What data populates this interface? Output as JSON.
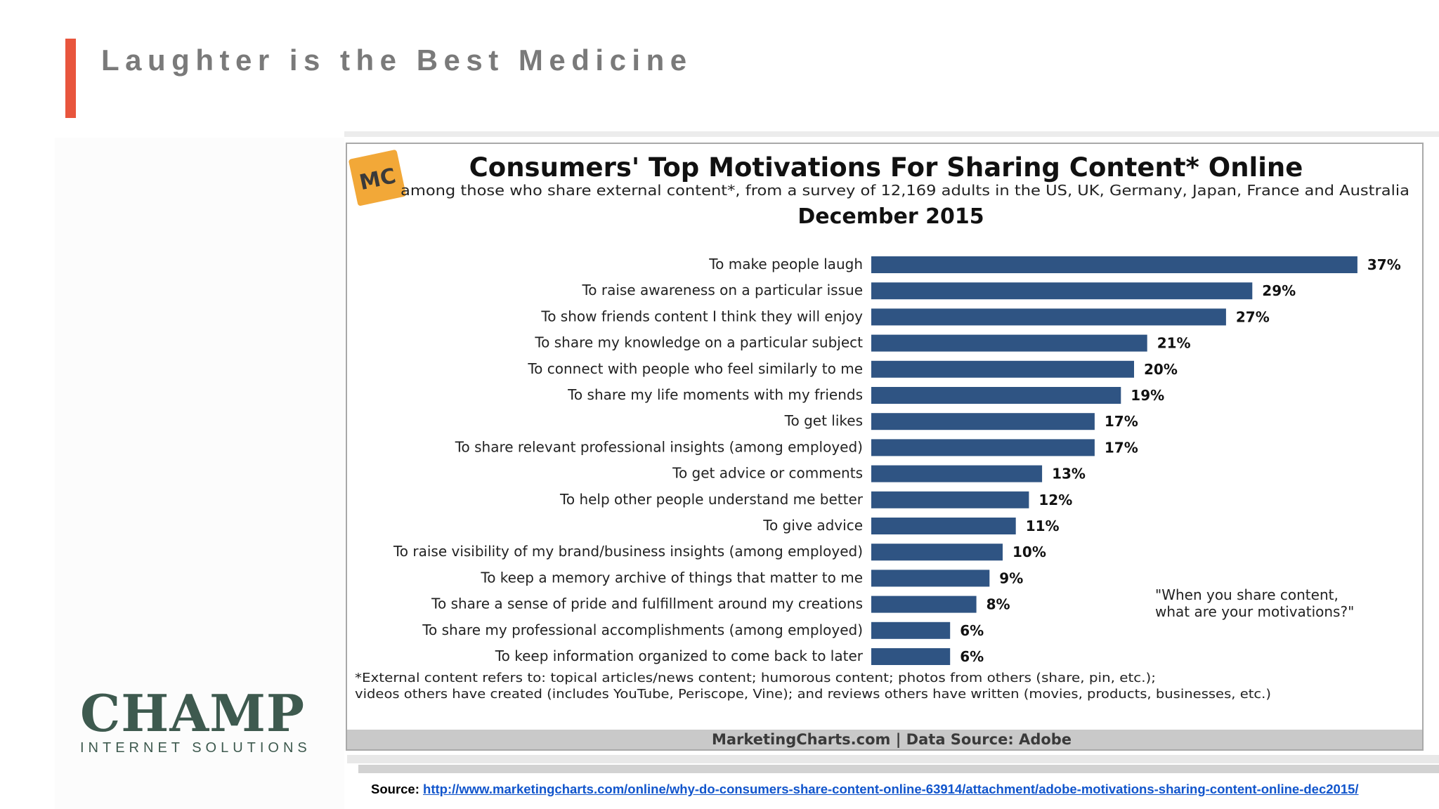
{
  "slide": {
    "title": "Laughter is the Best Medicine",
    "accent_color": "#e8553d"
  },
  "chart_data": {
    "type": "bar",
    "orientation": "horizontal",
    "badge": "MC",
    "title": "Consumers' Top Motivations For Sharing Content* Online",
    "subtitle": "among those who share external content*, from a survey of 12,169 adults in the US, UK, Germany, Japan, France and Australia",
    "date": "December 2015",
    "categories": [
      "To make people laugh",
      "To raise awareness on a particular issue",
      "To show friends content I think they will enjoy",
      "To share my knowledge on a particular subject",
      "To connect with people who feel similarly to me",
      "To share my life moments with my friends",
      "To get likes",
      "To share relevant professional insights (among employed)",
      "To get advice or comments",
      "To help other people understand me better",
      "To give advice",
      "To raise visibility of my brand/business insights (among employed)",
      "To keep a memory archive of things that matter to me",
      "To share a sense of pride and fulfillment around my creations",
      "To share my professional accomplishments (among employed)",
      "To keep information organized to come back to later"
    ],
    "values": [
      37,
      29,
      27,
      21,
      20,
      19,
      17,
      17,
      13,
      12,
      11,
      10,
      9,
      8,
      6,
      6
    ],
    "value_suffix": "%",
    "bar_color": "#2f5483",
    "xlim": [
      0,
      40
    ],
    "grid": false,
    "annotation": [
      "\"When you share content,",
      "what are your motivations?\""
    ],
    "footnote": [
      "*External content refers to: topical articles/news content; humorous content; photos from others (share, pin, etc.);",
      "videos others have created (includes YouTube, Periscope, Vine); and reviews others have written (movies, products, businesses, etc.)"
    ],
    "footer": "MarketingCharts.com | Data Source: Adobe"
  },
  "logo": {
    "name": "CHAMP",
    "tagline": "INTERNET SOLUTIONS"
  },
  "source": {
    "label": "Source:",
    "url": "http://www.marketingcharts.com/online/why-do-consumers-share-content-online-63914/attachment/adobe-motivations-sharing-content-online-dec2015/"
  }
}
